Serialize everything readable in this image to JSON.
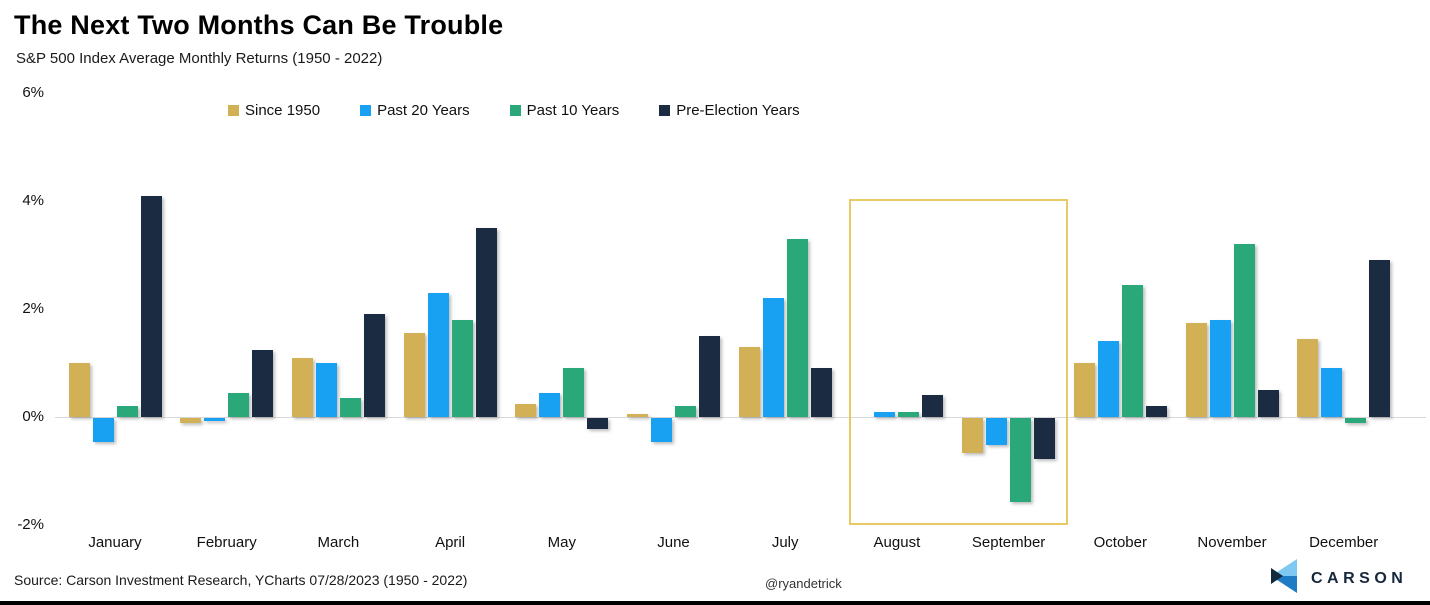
{
  "header": {
    "title": "The Next Two Months Can Be Trouble",
    "subtitle": "S&P 500 Index Average Monthly Returns (1950 - 2022)"
  },
  "chart_data": {
    "type": "bar",
    "title": "The Next Two Months Can Be Trouble",
    "subtitle": "S&P 500 Index Average Monthly Returns (1950 - 2022)",
    "categories": [
      "January",
      "February",
      "March",
      "April",
      "May",
      "June",
      "July",
      "August",
      "September",
      "October",
      "November",
      "December"
    ],
    "series": [
      {
        "name": "Since 1950",
        "color": "#d2b055",
        "values": [
          1.0,
          -0.1,
          1.1,
          1.55,
          0.25,
          0.05,
          1.3,
          0.0,
          -0.65,
          1.0,
          1.75,
          1.45
        ]
      },
      {
        "name": "Past 20 Years",
        "color": "#18a0f2",
        "values": [
          -0.45,
          -0.05,
          1.0,
          2.3,
          0.45,
          -0.45,
          2.2,
          0.1,
          -0.5,
          1.4,
          1.8,
          0.9
        ]
      },
      {
        "name": "Past 10 Years",
        "color": "#2aa87a",
        "values": [
          0.2,
          0.45,
          0.35,
          1.8,
          0.9,
          0.2,
          3.3,
          0.1,
          -1.55,
          2.45,
          3.2,
          -0.1
        ]
      },
      {
        "name": "Pre-Election Years",
        "color": "#1b2c42",
        "values": [
          4.1,
          1.25,
          1.9,
          3.5,
          -0.2,
          1.5,
          0.9,
          0.4,
          -0.75,
          0.2,
          0.5,
          2.9
        ]
      }
    ],
    "ylabel": "",
    "xlabel": "",
    "ylim": [
      -2,
      6
    ],
    "yticks": [
      6,
      4,
      2,
      0,
      -2
    ],
    "ytick_labels": [
      "6%",
      "4%",
      "2%",
      "0%",
      "-2%"
    ],
    "grid": "zero-baseline-only",
    "legend_position": "top-center",
    "highlight": {
      "months": [
        "August",
        "September"
      ],
      "border_color": "#e8c963"
    }
  },
  "footer": {
    "source": "Source: Carson Investment Research, YCharts 07/28/2023 (1950 - 2022)",
    "handle": "@ryandetrick",
    "brand": "CARSON"
  },
  "colors": {
    "axis_line": "#d8d8d8",
    "text": "#000000",
    "logo_light_blue": "#7ec9f2",
    "logo_mid_blue": "#1f7cc4",
    "logo_navy": "#12293e"
  }
}
